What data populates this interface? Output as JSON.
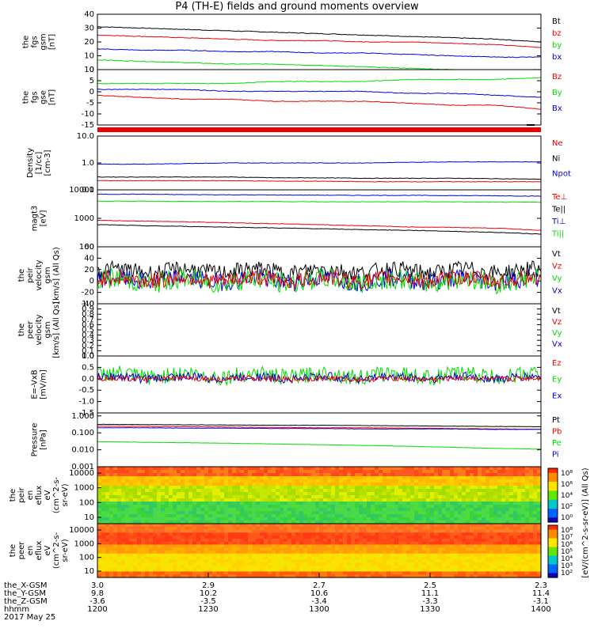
{
  "title": "P4 (TH-E) fields and ground moments overview",
  "date_label": "2017 May 25",
  "colors": {
    "black": "#000000",
    "red": "#ee0000",
    "green": "#00dd00",
    "blue": "#0000dd"
  },
  "chart_data": [
    {
      "id": "fgs_total",
      "type": "line",
      "ylabel": [
        "the",
        "fgs",
        "gsm",
        "[nT]"
      ],
      "ylim": [
        0,
        40
      ],
      "yticks": [
        "40",
        "30",
        "20",
        "10",
        "0"
      ],
      "legend": [
        {
          "label": "Bt",
          "color": "black"
        },
        {
          "label": "bz",
          "color": "red"
        },
        {
          "label": "by",
          "color": "green"
        },
        {
          "label": "bx",
          "color": "blue"
        }
      ],
      "series": [
        {
          "name": "Bt",
          "color": "black",
          "y": [
            31,
            30,
            29,
            28,
            27,
            26,
            25,
            24,
            23,
            22,
            20
          ]
        },
        {
          "name": "bz",
          "color": "red",
          "y": [
            25,
            24,
            23,
            22,
            21,
            21,
            20,
            20,
            19,
            18,
            16
          ]
        },
        {
          "name": "by",
          "color": "green",
          "y": [
            7,
            6,
            5,
            4,
            4,
            3,
            2,
            1,
            0,
            -1,
            0
          ]
        },
        {
          "name": "bx",
          "color": "blue",
          "y": [
            15,
            14,
            14,
            13,
            13,
            12,
            12,
            11,
            10,
            9,
            9
          ]
        }
      ]
    },
    {
      "id": "fgs_components",
      "type": "line",
      "ylabel": [
        "the",
        "fgs",
        "gse",
        "[nT]"
      ],
      "ylim": [
        -18,
        10
      ],
      "yticks": [
        "10",
        "5",
        "0",
        "-5",
        "-10",
        "-15"
      ],
      "legend": [
        {
          "label": "Bz",
          "color": "red"
        },
        {
          "label": "By",
          "color": "green"
        },
        {
          "label": "Bx",
          "color": "blue"
        }
      ],
      "series": [
        {
          "name": "Bz",
          "color": "red",
          "y": [
            -3,
            -4,
            -5,
            -5,
            -6,
            -6,
            -6,
            -7,
            -8,
            -8,
            -10
          ]
        },
        {
          "name": "By",
          "color": "green",
          "y": [
            3,
            3,
            3,
            3,
            4,
            4,
            4,
            5,
            5,
            5,
            6
          ]
        },
        {
          "name": "Bx",
          "color": "blue",
          "y": [
            0,
            0,
            0,
            -1,
            -1,
            -1,
            -1,
            -2,
            -2,
            -3,
            -4
          ]
        }
      ]
    },
    {
      "id": "density",
      "type": "line",
      "log": true,
      "ylabel": [
        "Density",
        "[1/cc]",
        "[cm-3]"
      ],
      "ylim": [
        0.1,
        10
      ],
      "yticks": [
        "10.0",
        "1.0",
        "0.1"
      ],
      "legend": [
        {
          "label": "Ne",
          "color": "red"
        },
        {
          "label": "Ni",
          "color": "black"
        },
        {
          "label": "Npot",
          "color": "blue"
        }
      ],
      "series": [
        {
          "name": "Npot",
          "color": "blue",
          "y": [
            0.9,
            0.9,
            0.95,
            1.0,
            1.0,
            1.0,
            1.0,
            1.05,
            1.1,
            1.1,
            1.1
          ]
        },
        {
          "name": "Ni",
          "color": "black",
          "y": [
            0.3,
            0.3,
            0.3,
            0.3,
            0.28,
            0.28,
            0.27,
            0.27,
            0.27,
            0.26,
            0.25
          ]
        },
        {
          "name": "Ne",
          "color": "red",
          "y": [
            0.22,
            0.22,
            0.22,
            0.22,
            0.21,
            0.21,
            0.2,
            0.2,
            0.2,
            0.2,
            0.2
          ]
        }
      ]
    },
    {
      "id": "temperature",
      "type": "line",
      "log": true,
      "ylabel": [
        "magt3",
        "[eV]"
      ],
      "ylim": [
        100,
        10000
      ],
      "yticks": [
        "10000",
        "1000",
        "100"
      ],
      "legend": [
        {
          "label": "Te⊥",
          "color": "red"
        },
        {
          "label": "Te||",
          "color": "black"
        },
        {
          "label": "Ti⊥",
          "color": "blue"
        },
        {
          "label": "Ti||",
          "color": "green"
        }
      ],
      "series": [
        {
          "name": "Ti⊥",
          "color": "blue",
          "y": [
            7000,
            7000,
            6800,
            6700,
            6600,
            6500,
            6400,
            6400,
            6300,
            6200,
            6000
          ]
        },
        {
          "name": "Ti||",
          "color": "green",
          "y": [
            4000,
            4000,
            3900,
            3900,
            3900,
            3800,
            3800,
            3800,
            3800,
            3700,
            3700
          ]
        },
        {
          "name": "Te⊥",
          "color": "red",
          "y": [
            850,
            800,
            750,
            700,
            650,
            600,
            550,
            500,
            480,
            450,
            380
          ]
        },
        {
          "name": "Te||",
          "color": "black",
          "y": [
            600,
            550,
            520,
            490,
            460,
            430,
            400,
            380,
            350,
            320,
            280
          ]
        }
      ]
    },
    {
      "id": "peir_velocity",
      "type": "line",
      "noisy": true,
      "ylabel": [
        "the",
        "peir",
        "velocity",
        "gsm",
        "[km/s] (All Qs)"
      ],
      "ylim": [
        -40,
        60
      ],
      "yticks": [
        "60",
        "40",
        "20",
        "0",
        "-20",
        "-40"
      ],
      "legend": [
        {
          "label": "Vt",
          "color": "black"
        },
        {
          "label": "Vz",
          "color": "red"
        },
        {
          "label": "Vy",
          "color": "green"
        },
        {
          "label": "Vx",
          "color": "blue"
        }
      ],
      "series": [
        {
          "name": "Vt",
          "color": "black",
          "base": 18,
          "amp": 14
        },
        {
          "name": "Vx",
          "color": "blue",
          "base": 2,
          "amp": 16
        },
        {
          "name": "Vy",
          "color": "green",
          "base": 0,
          "amp": 18
        },
        {
          "name": "Vz",
          "color": "red",
          "base": 3,
          "amp": 14
        }
      ]
    },
    {
      "id": "peer_velocity",
      "type": "line",
      "empty": true,
      "ylabel": [
        "the",
        "peer",
        "velocity",
        "gsm",
        "[km/s] (All Qs)"
      ],
      "ylim": [
        0,
        1
      ],
      "yticks": [
        "1.0",
        "0.9",
        "0.8",
        "0.7",
        "0.6",
        "0.5",
        "0.4",
        "0.3",
        "0.2",
        "0.1",
        "0.0"
      ],
      "legend": [
        {
          "label": "Vt",
          "color": "black"
        },
        {
          "label": "Vz",
          "color": "red"
        },
        {
          "label": "Vy",
          "color": "green"
        },
        {
          "label": "Vx",
          "color": "blue"
        }
      ],
      "series": []
    },
    {
      "id": "efield",
      "type": "line",
      "noisy": true,
      "ylabel": [
        "E=-VxB",
        "[mV/m]"
      ],
      "ylim": [
        -1.5,
        1.0
      ],
      "yticks": [
        "1.0",
        "0.5",
        "0.0",
        "-0.5",
        "-1.0",
        "-1.5"
      ],
      "legend": [
        {
          "label": "Ez",
          "color": "red"
        },
        {
          "label": "Ey",
          "color": "green"
        },
        {
          "label": "Ex",
          "color": "blue"
        }
      ],
      "series": [
        {
          "name": "Ey",
          "color": "green",
          "base": 0.15,
          "amp": 0.35
        },
        {
          "name": "Ex",
          "color": "blue",
          "base": 0.05,
          "amp": 0.2
        },
        {
          "name": "Ez",
          "color": "red",
          "base": 0.0,
          "amp": 0.12
        }
      ]
    },
    {
      "id": "pressure",
      "type": "line",
      "log": true,
      "ylabel": [
        "Pressure",
        "[nPa]"
      ],
      "ylim": [
        0.001,
        1.5
      ],
      "yticks": [
        "1.000",
        "0.100",
        "0.010",
        "0.001"
      ],
      "legend": [
        {
          "label": "Pt",
          "color": "black"
        },
        {
          "label": "Pb",
          "color": "red"
        },
        {
          "label": "Pe",
          "color": "green"
        },
        {
          "label": "Pi",
          "color": "blue"
        }
      ],
      "series": [
        {
          "name": "Pt",
          "color": "black",
          "y": [
            0.32,
            0.31,
            0.3,
            0.29,
            0.28,
            0.28,
            0.27,
            0.26,
            0.25,
            0.24,
            0.23
          ]
        },
        {
          "name": "Pb",
          "color": "red",
          "y": [
            0.25,
            0.24,
            0.23,
            0.22,
            0.21,
            0.2,
            0.2,
            0.19,
            0.18,
            0.17,
            0.16
          ]
        },
        {
          "name": "Pi",
          "color": "blue",
          "y": [
            0.2,
            0.2,
            0.19,
            0.19,
            0.18,
            0.18,
            0.17,
            0.17,
            0.17,
            0.16,
            0.16
          ]
        },
        {
          "name": "Pe",
          "color": "green",
          "y": [
            0.03,
            0.028,
            0.026,
            0.024,
            0.022,
            0.02,
            0.018,
            0.016,
            0.014,
            0.012,
            0.011
          ]
        }
      ]
    },
    {
      "id": "peir_eflux",
      "type": "heatmap",
      "ylabel": [
        "the",
        "peir",
        "en",
        "eflux",
        "eV",
        "(cm^2-s-",
        "sr-eV)"
      ],
      "yticks": [
        "10000",
        "1000",
        "100",
        "10"
      ]
    },
    {
      "id": "peer_eflux",
      "type": "heatmap",
      "ylabel": [
        "the",
        "peer",
        "en",
        "eflux",
        "eV",
        "(cm^2-s-",
        "sr-eV)"
      ],
      "yticks": [
        "10000",
        "1000",
        "100",
        "10"
      ]
    }
  ],
  "colorbar": {
    "label": "[eV/(cm^2-s-sr-eV)] (All Qs)",
    "top_ticks": [
      "10⁸",
      "10⁶",
      "10⁴",
      "10²",
      "10⁰"
    ],
    "bottom_ticks": [
      "10⁸",
      "10⁷",
      "10⁶",
      "10⁵",
      "10⁴",
      "10³",
      "10²"
    ]
  },
  "x_axis": {
    "row_labels": [
      "the_X-GSM",
      "the_Y-GSM",
      "the_Z-GSM",
      "hhmm"
    ],
    "ticks": [
      {
        "vals": [
          "3.0",
          "9.8",
          "-3.6",
          "1200"
        ]
      },
      {
        "vals": [
          "2.9",
          "10.2",
          "-3.5",
          "1230"
        ]
      },
      {
        "vals": [
          "2.7",
          "10.6",
          "-3.4",
          "1300"
        ]
      },
      {
        "vals": [
          "2.5",
          "11.1",
          "-3.3",
          "1330"
        ]
      },
      {
        "vals": [
          "2.3",
          "11.4",
          "-3.1",
          "1400"
        ]
      }
    ]
  }
}
